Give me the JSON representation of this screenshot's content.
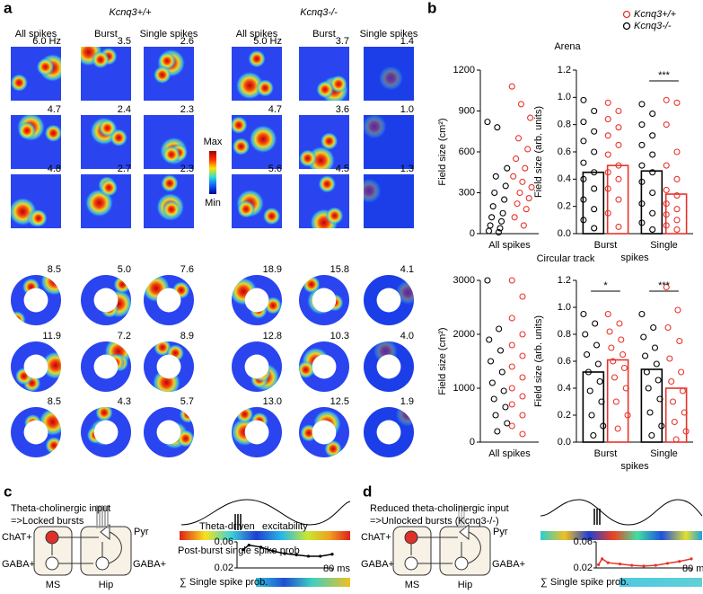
{
  "panel_a": {
    "label": "a",
    "groups": [
      {
        "genotype": "Kcnq3+/+",
        "columns": [
          "All spikes",
          "Burst",
          "Single spikes"
        ],
        "rates": [
          [
            "6.0 Hz",
            "3.5",
            "2.6"
          ],
          [
            "4.7",
            "2.4",
            "2.3"
          ],
          [
            "4.8",
            "2.7",
            "2.3"
          ],
          [
            "8.5",
            "5.0",
            "7.6"
          ],
          [
            "11.9",
            "7.2",
            "8.9"
          ],
          [
            "8.5",
            "4.3",
            "5.7"
          ]
        ]
      },
      {
        "genotype": "Kcnq3-/-",
        "columns": [
          "All spikes",
          "Burst",
          "Single spikes"
        ],
        "rates": [
          [
            "5.0 Hz",
            "3.7",
            "1.4"
          ],
          [
            "4.7",
            "3.6",
            "1.0"
          ],
          [
            "5.6",
            "4.5",
            "1.3"
          ],
          [
            "18.9",
            "15.8",
            "4.1"
          ],
          [
            "12.8",
            "10.3",
            "4.0"
          ],
          [
            "13.0",
            "12.5",
            "1.9"
          ]
        ]
      }
    ],
    "colorbar": {
      "max": "Max",
      "min": "Min"
    }
  },
  "panel_b": {
    "label": "b",
    "titles": [
      "Arena",
      "Circular track"
    ]
  },
  "chart_data": [
    {
      "type": "strip",
      "ylabel": "Field size (cm²)",
      "categories": [
        "All spikes"
      ],
      "ylim": [
        0,
        1200
      ],
      "yticks": [
        0,
        300,
        600,
        900,
        1200
      ],
      "series": [
        {
          "name": "Kcnq3-/-",
          "color": "#000000",
          "points": [
            [
              820,
              780,
              480,
              420,
              350,
              300,
              250,
              200,
              150,
              120,
              90,
              60,
              40,
              20,
              10
            ]
          ]
        },
        {
          "name": "Kcnq3+/+",
          "color": "#e8332a",
          "points": [
            [
              1080,
              950,
              850,
              700,
              620,
              550,
              480,
              420,
              380,
              340,
              300,
              260,
              220,
              180,
              120,
              60
            ]
          ]
        }
      ]
    },
    {
      "type": "strip",
      "ylabel": "Field size (arb. units)",
      "xlabel": "spikes",
      "categories": [
        "Burst",
        "Single"
      ],
      "ylim": [
        0,
        1.2
      ],
      "yticks": [
        {
          "value": 0,
          "label": "0.0"
        },
        0.2,
        0.4,
        0.6,
        0.8,
        {
          "value": 1,
          "label": "1.0"
        },
        1.2
      ],
      "significance": [
        null,
        "***"
      ],
      "series": [
        {
          "name": "Kcnq3-/-",
          "color": "#000000",
          "means": [
            0.45,
            0.46
          ],
          "points": [
            [
              0.98,
              0.9,
              0.82,
              0.75,
              0.68,
              0.6,
              0.52,
              0.45,
              0.4,
              0.33,
              0.25,
              0.18,
              0.1,
              0.04
            ],
            [
              0.95,
              0.88,
              0.8,
              0.72,
              0.65,
              0.58,
              0.5,
              0.45,
              0.38,
              0.3,
              0.22,
              0.15,
              0.08,
              0.03
            ]
          ]
        },
        {
          "name": "Kcnq3+/+",
          "color": "#e8332a",
          "means": [
            0.5,
            0.29
          ],
          "points": [
            [
              0.96,
              0.9,
              0.84,
              0.78,
              0.72,
              0.65,
              0.58,
              0.5,
              0.45,
              0.4,
              0.33,
              0.25,
              0.15,
              0.05
            ],
            [
              0.98,
              0.96,
              0.8,
              0.6,
              0.5,
              0.4,
              0.32,
              0.28,
              0.22,
              0.18,
              0.14,
              0.1,
              0.06,
              0.03
            ]
          ]
        }
      ]
    },
    {
      "type": "strip",
      "ylabel": "Field size (cm²)",
      "categories": [
        "All spikes"
      ],
      "ylim": [
        0,
        3000
      ],
      "yticks": [
        0,
        1000,
        2000,
        3000
      ],
      "series": [
        {
          "name": "Kcnq3-/-",
          "color": "#000000",
          "points": [
            [
              3000,
              2100,
              1900,
              1700,
              1500,
              1300,
              1100,
              950,
              800,
              650,
              500,
              350,
              200
            ]
          ]
        },
        {
          "name": "Kcnq3+/+",
          "color": "#e8332a",
          "points": [
            [
              3000,
              2700,
              2300,
              2000,
              1800,
              1600,
              1400,
              1200,
              1000,
              850,
              700,
              500,
              300,
              150
            ]
          ]
        }
      ]
    },
    {
      "type": "strip",
      "ylabel": "Field size (arb. units)",
      "xlabel": "spikes",
      "categories": [
        "Burst",
        "Single"
      ],
      "ylim": [
        0,
        1.2
      ],
      "yticks": [
        {
          "value": 0,
          "label": "0.0"
        },
        0.2,
        0.4,
        0.6,
        0.8,
        {
          "value": 1,
          "label": "1.0"
        },
        1.2
      ],
      "significance": [
        "*",
        "***"
      ],
      "series": [
        {
          "name": "Kcnq3-/-",
          "color": "#000000",
          "means": [
            0.52,
            0.54
          ],
          "points": [
            [
              0.95,
              0.88,
              0.8,
              0.72,
              0.65,
              0.58,
              0.52,
              0.45,
              0.38,
              0.3,
              0.2,
              0.12,
              0.05
            ],
            [
              0.95,
              0.85,
              0.78,
              0.7,
              0.64,
              0.58,
              0.52,
              0.46,
              0.4,
              0.32,
              0.22,
              0.12,
              0.05
            ]
          ]
        },
        {
          "name": "Kcnq3+/+",
          "color": "#e8332a",
          "means": [
            0.61,
            0.4
          ],
          "points": [
            [
              0.95,
              0.88,
              0.82,
              0.76,
              0.7,
              0.65,
              0.6,
              0.55,
              0.48,
              0.4,
              0.3,
              0.2,
              0.1
            ],
            [
              1.15,
              0.98,
              0.85,
              0.75,
              0.62,
              0.52,
              0.45,
              0.38,
              0.3,
              0.22,
              0.15,
              0.08,
              0.02
            ]
          ]
        }
      ]
    },
    {
      "type": "line",
      "title": "Post-burst single spike prob",
      "color": "#000000",
      "x": [
        5,
        10,
        20,
        30,
        40,
        50,
        60,
        70,
        80
      ],
      "values": [
        0.048,
        0.055,
        0.052,
        0.046,
        0.042,
        0.04,
        0.038,
        0.038,
        0.041
      ],
      "xlim": [
        0,
        80
      ],
      "xticks": [
        {
          "value": 80,
          "label": "80 ms"
        }
      ],
      "ylim": [
        0.02,
        0.06
      ],
      "yticks": [
        0.02,
        0.06
      ]
    },
    {
      "type": "line",
      "color": "#e8332a",
      "x": [
        2,
        5,
        10,
        20,
        30,
        40,
        50,
        60,
        70,
        80
      ],
      "values": [
        0.025,
        0.034,
        0.028,
        0.026,
        0.024,
        0.023,
        0.024,
        0.027,
        0.03,
        0.034
      ],
      "xlim": [
        0,
        80
      ],
      "xticks": [
        {
          "value": 80,
          "label": "80 ms"
        }
      ],
      "ylim": [
        0.02,
        0.06
      ],
      "yticks": [
        0.02,
        0.06
      ]
    }
  ],
  "panel_c": {
    "label": "c",
    "title": [
      "Theta-cholinergic input",
      "=>Locked bursts"
    ],
    "ms_labels": [
      "ChAT+",
      "GABA+"
    ],
    "hip_labels": [
      "Pyr",
      "GABA+"
    ],
    "regions": [
      "MS",
      "Hip"
    ],
    "bar_labels": [
      "Theta-driven",
      "excitability"
    ],
    "sum_label": "∑ Single spike prob."
  },
  "panel_d": {
    "label": "d",
    "title": [
      "Reduced theta-cholinergic input",
      "=>Unlocked bursts (Kcnq3-/-)"
    ],
    "ms_labels": [
      "ChAT+",
      "GABA+"
    ],
    "hip_labels": [
      "Pyr",
      "GABA+"
    ],
    "regions": [
      "MS",
      "Hip"
    ],
    "sum_label": "∑ Single spike prob."
  }
}
